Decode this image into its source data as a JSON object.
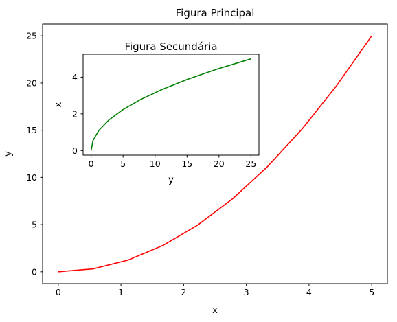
{
  "chart_data": [
    {
      "id": "main",
      "type": "line",
      "title": "Figura Principal",
      "xlabel": "x",
      "ylabel": "y",
      "xlim": [
        -0.25,
        5.25
      ],
      "ylim": [
        -1.25,
        26.25
      ],
      "xticks": [
        0,
        1,
        2,
        3,
        4,
        5
      ],
      "yticks": [
        0,
        5,
        10,
        15,
        20,
        25
      ],
      "grid": false,
      "series": [
        {
          "color": "#ff0000",
          "x": [
            0,
            0.556,
            1.111,
            1.667,
            2.222,
            2.778,
            3.333,
            3.889,
            4.444,
            5.0
          ],
          "y": [
            0,
            0.309,
            1.235,
            2.778,
            4.938,
            7.716,
            11.111,
            15.123,
            19.753,
            25.0
          ]
        }
      ]
    },
    {
      "id": "inset",
      "type": "line",
      "title": "Figura Secundária",
      "xlabel": "y",
      "ylabel": "x",
      "xlim": [
        -1.25,
        26.25
      ],
      "ylim": [
        -0.25,
        5.25
      ],
      "xticks": [
        0,
        5,
        10,
        15,
        20,
        25
      ],
      "yticks": [
        0,
        2,
        4
      ],
      "grid": false,
      "series": [
        {
          "color": "#008000",
          "x": [
            0,
            0.309,
            1.235,
            2.778,
            4.938,
            7.716,
            11.111,
            15.123,
            19.753,
            25.0
          ],
          "y": [
            0,
            0.556,
            1.111,
            1.667,
            2.222,
            2.778,
            3.333,
            3.889,
            4.444,
            5.0
          ]
        }
      ]
    }
  ]
}
